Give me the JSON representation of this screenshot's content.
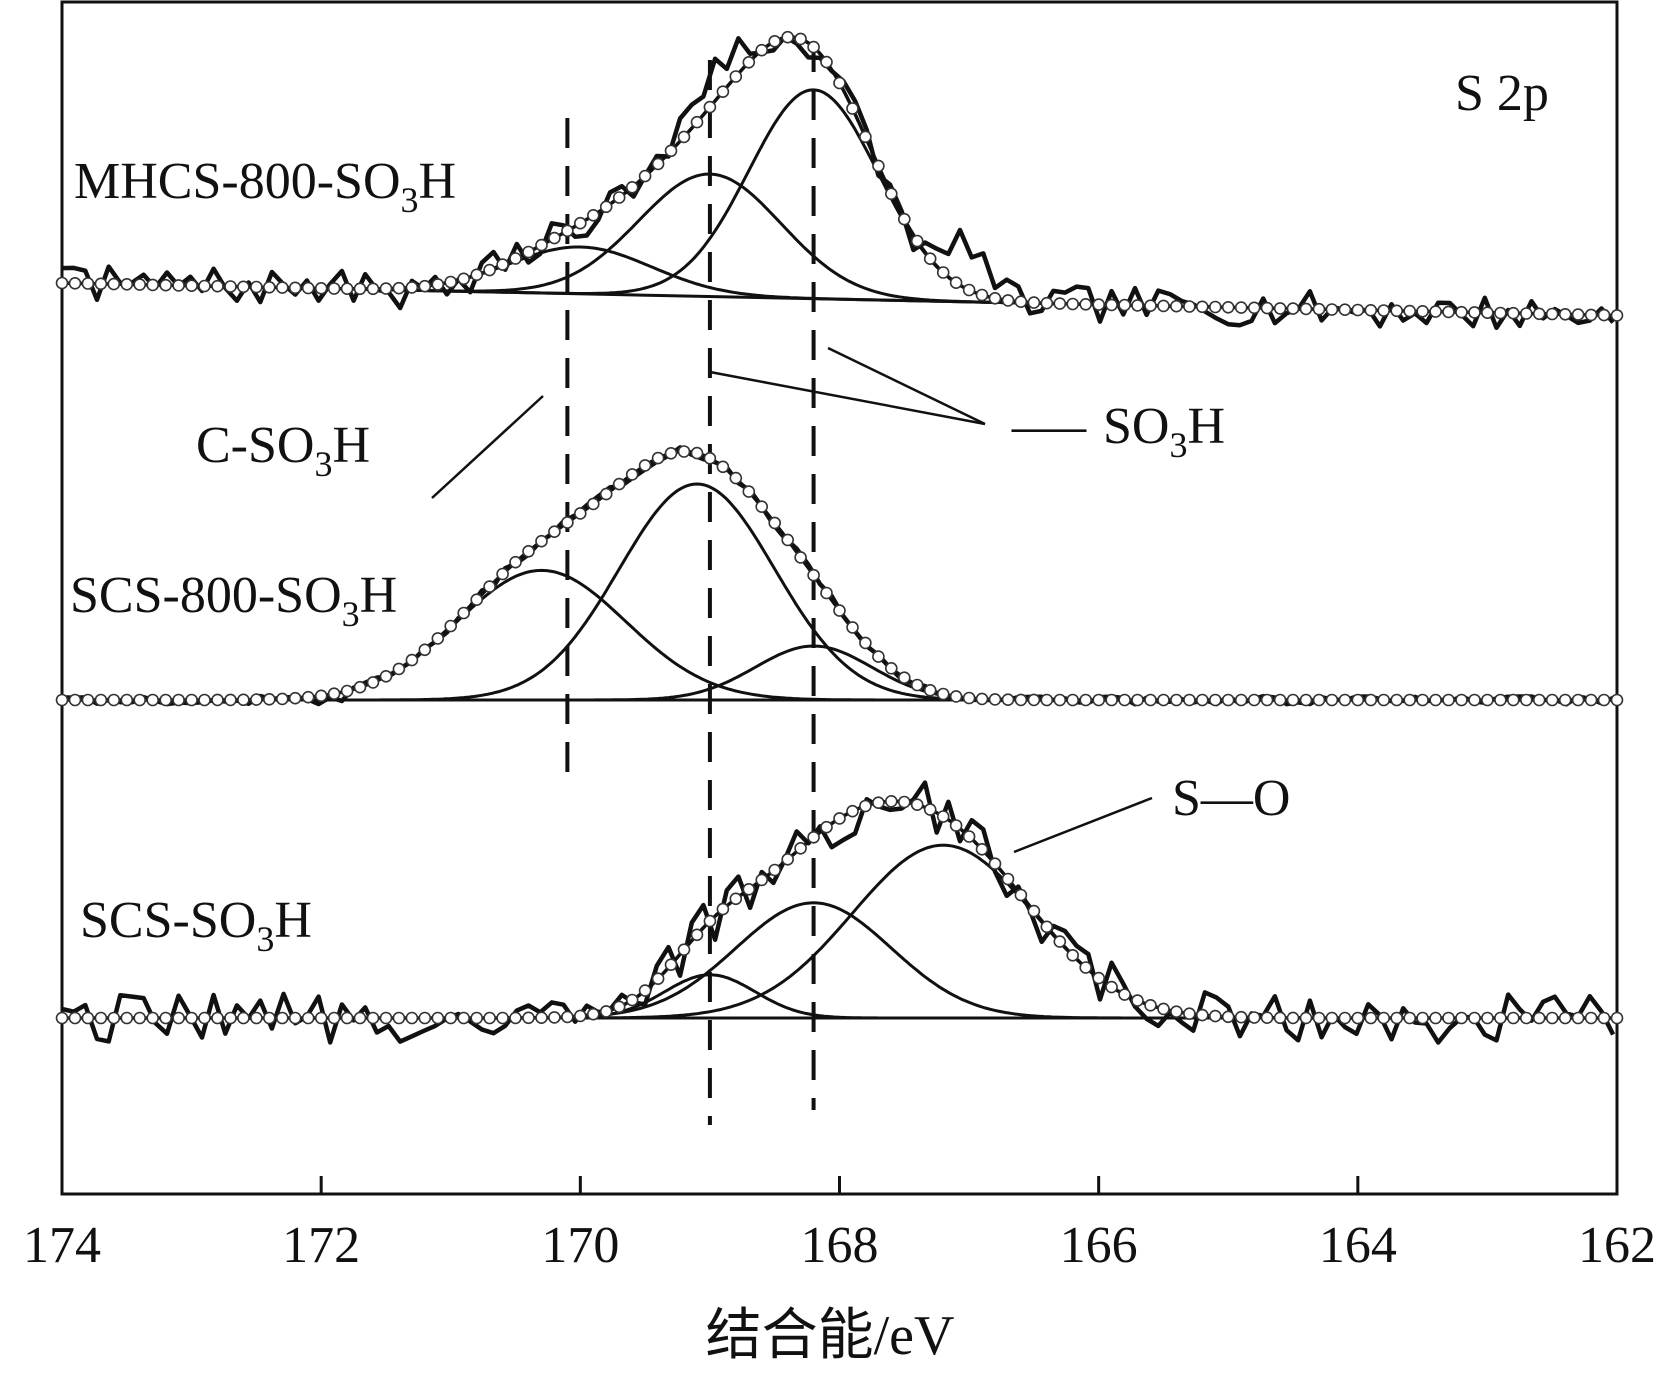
{
  "chart_data": {
    "type": "line",
    "title": "",
    "panel_label": "S 2p",
    "xlabel": "结合能/eV",
    "ylabel": "",
    "xlim": [
      174,
      162
    ],
    "x_reversed": true,
    "x_ticks": [
      174,
      172,
      170,
      168,
      166,
      164,
      162
    ],
    "x_tick_labels": [
      "174",
      "172",
      "170",
      "168",
      "166",
      "164",
      "162"
    ],
    "grid": false,
    "y_ticks": "none",
    "vertical_reference_lines": [
      170.1,
      169.0,
      168.2
    ],
    "series": [
      {
        "name": "MHCS-800-SO3H",
        "label_parts": [
          "MHCS-800-SO",
          "3",
          "H"
        ],
        "baseline": [
          [
            174,
            0.0
          ],
          [
            162,
            -0.09
          ]
        ],
        "components": [
          {
            "center": 170.0,
            "height": 0.13,
            "width": 0.55
          },
          {
            "center": 169.0,
            "height": 0.34,
            "width": 0.55
          },
          {
            "center": 168.2,
            "height": 0.58,
            "width": 0.5
          }
        ],
        "noise": 0.05,
        "rise_onset": 170.8,
        "extra_peaks": [
          [
            167.0,
            0.14
          ]
        ],
        "hump_upper": [
          169.3,
          168.7
        ]
      },
      {
        "name": "SCS-800-SO3H",
        "label_parts": [
          "SCS-800-SO",
          "3",
          "H"
        ],
        "baseline": [
          [
            174,
            0.0
          ],
          [
            162,
            0.0
          ]
        ],
        "components": [
          {
            "center": 170.3,
            "height": 0.36,
            "width": 0.65
          },
          {
            "center": 169.1,
            "height": 0.6,
            "width": 0.6
          },
          {
            "center": 168.2,
            "height": 0.15,
            "width": 0.45
          }
        ],
        "noise": 0.012,
        "rise_onset": 171.8,
        "extra_peaks": [],
        "hump_upper": []
      },
      {
        "name": "SCS-SO3H",
        "label_parts": [
          "SCS-SO",
          "3",
          "H"
        ],
        "baseline": [
          [
            174,
            0.0
          ],
          [
            162,
            0.0
          ]
        ],
        "components": [
          {
            "center": 169.0,
            "height": 0.12,
            "width": 0.35
          },
          {
            "center": 168.2,
            "height": 0.32,
            "width": 0.6
          },
          {
            "center": 167.2,
            "height": 0.48,
            "width": 0.7
          }
        ],
        "noise": 0.07,
        "rise_onset": 169.6,
        "extra_peaks": [],
        "hump_upper": []
      }
    ],
    "annotations": [
      {
        "id": "c-so3h",
        "parts": [
          "C-SO",
          "3",
          "H"
        ]
      },
      {
        "id": "so3h",
        "dash": "—",
        "parts": [
          "SO",
          "3",
          "H"
        ]
      },
      {
        "id": "s-o",
        "text": "S—O"
      }
    ]
  }
}
